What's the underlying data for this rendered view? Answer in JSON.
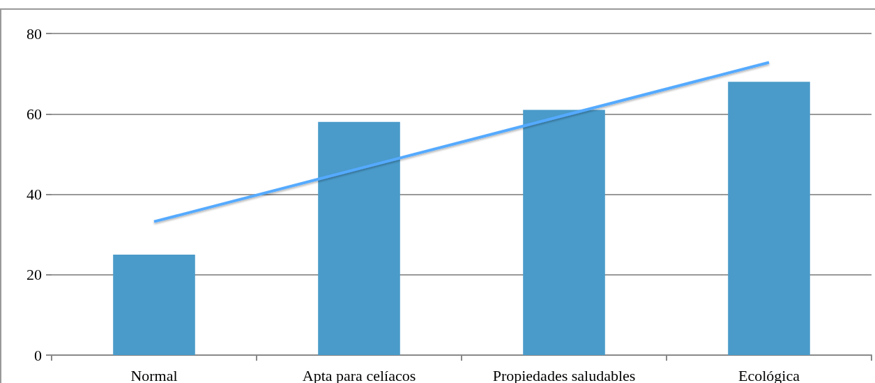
{
  "chart_data": {
    "type": "bar",
    "categories": [
      "Normal",
      "Apta para celíacos",
      "Propiedades saludables",
      "Ecológica"
    ],
    "series": [
      {
        "color": "#4a9bca",
        "values": [
          25,
          58,
          61,
          68
        ]
      },
      {
        "type": "line",
        "color": "#55aaff",
        "x": [
          "Normal",
          "Apta para celíacos",
          "Propiedades saludables",
          "Ecológica"
        ],
        "values": [
          33.2,
          46.4,
          59.6,
          72.8
        ],
        "marker": "none"
      }
    ],
    "ylim": [
      0,
      80
    ],
    "yticks": [
      0,
      20,
      40,
      60,
      80
    ],
    "grid": "y"
  }
}
